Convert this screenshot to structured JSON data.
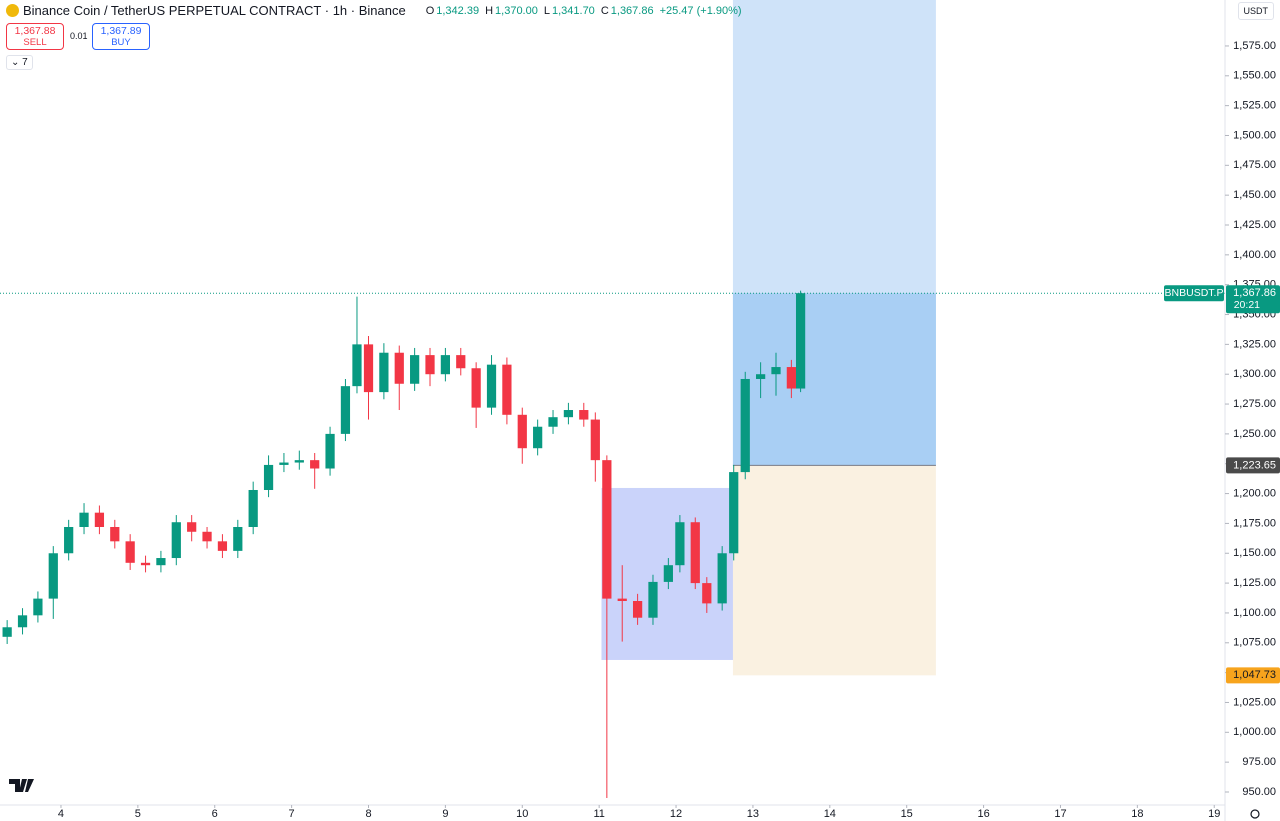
{
  "header": {
    "symbol": "Binance Coin / TetherUS PERPETUAL CONTRACT · 1h · Binance",
    "ohlc": [
      {
        "key": "O",
        "value": "1,342.39"
      },
      {
        "key": "H",
        "value": "1,370.00"
      },
      {
        "key": "L",
        "value": "1,341.70"
      },
      {
        "key": "C",
        "value": "1,367.86"
      }
    ],
    "change": "+25.47 (+1.90%)",
    "sell_price": "1,367.88",
    "sell": "SELL",
    "quantity": "0.01",
    "buy_price": "1,367.89",
    "buy": "BUY",
    "indicators": "7",
    "currency": "USDT"
  },
  "chart_data": {
    "type": "candlestick",
    "x": [
      3.3,
      3.5,
      3.7,
      3.9,
      4.1,
      4.3,
      4.5,
      4.7,
      4.9,
      5.1,
      5.3,
      5.5,
      5.7,
      5.9,
      6.1,
      6.3,
      6.5,
      6.7,
      6.9,
      7.1,
      7.3,
      7.5,
      7.7,
      7.85,
      8.0,
      8.2,
      8.4,
      8.6,
      8.8,
      9.0,
      9.2,
      9.4,
      9.6,
      9.8,
      10.0,
      10.2,
      10.4,
      10.6,
      10.8,
      10.95,
      11.1,
      11.3,
      11.5,
      11.7,
      11.9,
      12.05,
      12.25,
      12.4,
      12.6,
      12.75,
      12.9,
      13.1,
      13.3,
      13.5,
      13.62
    ],
    "open": [
      1080,
      1088,
      1098,
      1112,
      1150,
      1172,
      1184,
      1172,
      1160,
      1142,
      1140,
      1146,
      1176,
      1168,
      1160,
      1152,
      1172,
      1203,
      1224,
      1226,
      1228,
      1221,
      1250,
      1290,
      1325,
      1285,
      1318,
      1292,
      1316,
      1300,
      1316,
      1305,
      1272,
      1308,
      1266,
      1238,
      1256,
      1264,
      1270,
      1262,
      1228,
      1112,
      1110,
      1096,
      1126,
      1140,
      1176,
      1125,
      1108,
      1150,
      1218,
      1296,
      1300,
      1306,
      1288
    ],
    "high": [
      1094,
      1104,
      1118,
      1156,
      1178,
      1192,
      1190,
      1178,
      1166,
      1148,
      1152,
      1182,
      1182,
      1172,
      1166,
      1178,
      1210,
      1232,
      1234,
      1236,
      1234,
      1256,
      1296,
      1365,
      1332,
      1326,
      1324,
      1322,
      1322,
      1322,
      1322,
      1310,
      1316,
      1314,
      1272,
      1262,
      1270,
      1276,
      1276,
      1268,
      1232,
      1140,
      1116,
      1132,
      1146,
      1182,
      1180,
      1130,
      1156,
      1224,
      1302,
      1310,
      1318,
      1312,
      1370
    ],
    "low": [
      1074,
      1082,
      1092,
      1095,
      1144,
      1166,
      1166,
      1154,
      1136,
      1134,
      1134,
      1140,
      1160,
      1154,
      1146,
      1146,
      1166,
      1197,
      1218,
      1220,
      1204,
      1215,
      1244,
      1284,
      1262,
      1279,
      1270,
      1286,
      1290,
      1294,
      1299,
      1255,
      1266,
      1258,
      1225,
      1232,
      1250,
      1258,
      1256,
      1210,
      945,
      1076,
      1090,
      1090,
      1120,
      1134,
      1120,
      1100,
      1102,
      1144,
      1212,
      1280,
      1282,
      1280,
      1285
    ],
    "close": [
      1088,
      1098,
      1112,
      1150,
      1172,
      1184,
      1172,
      1160,
      1142,
      1140,
      1146,
      1176,
      1168,
      1160,
      1152,
      1172,
      1203,
      1224,
      1226,
      1228,
      1221,
      1250,
      1290,
      1325,
      1285,
      1318,
      1292,
      1316,
      1300,
      1316,
      1305,
      1272,
      1308,
      1266,
      1238,
      1256,
      1264,
      1270,
      1262,
      1228,
      1112,
      1110,
      1096,
      1126,
      1140,
      1176,
      1125,
      1108,
      1150,
      1218,
      1296,
      1300,
      1306,
      1288,
      1367.86
    ],
    "up_color": "#089981",
    "down_color": "#f23645",
    "xlim": [
      3.207,
      19.14
    ],
    "xticks": [
      4,
      5,
      6,
      7,
      8,
      9,
      10,
      11,
      12,
      13,
      14,
      15,
      16,
      17,
      18,
      19
    ],
    "ylim": [
      939.1,
      1613.5
    ],
    "yticks": [
      {
        "value": 950,
        "label": "950.00"
      },
      {
        "value": 975,
        "label": "975.00"
      },
      {
        "value": 1000,
        "label": "1,000.00"
      },
      {
        "value": 1025,
        "label": "1,025.00"
      },
      {
        "value": 1050,
        "label": "1,050.00"
      },
      {
        "value": 1075,
        "label": "1,075.00"
      },
      {
        "value": 1100,
        "label": "1,100.00"
      },
      {
        "value": 1125,
        "label": "1,125.00"
      },
      {
        "value": 1150,
        "label": "1,150.00"
      },
      {
        "value": 1175,
        "label": "1,175.00"
      },
      {
        "value": 1200,
        "label": "1,200.00"
      },
      {
        "value": 1225,
        "label": "1,225.00"
      },
      {
        "value": 1250,
        "label": "1,250.00"
      },
      {
        "value": 1275,
        "label": "1,275.00"
      },
      {
        "value": 1300,
        "label": "1,300.00"
      },
      {
        "value": 1325,
        "label": "1,325.00"
      },
      {
        "value": 1350,
        "label": "1,350.00"
      },
      {
        "value": 1375,
        "label": "1,375.00"
      },
      {
        "value": 1400,
        "label": "1,400.00"
      },
      {
        "value": 1425,
        "label": "1,425.00"
      },
      {
        "value": 1450,
        "label": "1,450.00"
      },
      {
        "value": 1475,
        "label": "1,475.00"
      },
      {
        "value": 1500,
        "label": "1,500.00"
      },
      {
        "value": 1525,
        "label": "1,525.00"
      },
      {
        "value": 1550,
        "label": "1,550.00"
      },
      {
        "value": 1575,
        "label": "1,575.00"
      }
    ],
    "grid": false,
    "rectangle": {
      "x": [
        11.03,
        12.91
      ],
      "y": [
        1060.6,
        1204.7
      ],
      "color": "#a7b5f7"
    },
    "position": {
      "x": [
        12.74,
        15.38
      ],
      "target_color": "#cfe3f9",
      "active_color": "#a9cff4",
      "stop_color": "#faf1e1"
    },
    "last_price": {
      "symbol": "BNBUSDT.P",
      "price": {
        "value": 1367.86,
        "label": "1,367.86"
      },
      "countdown": "20:21",
      "color": "#089981"
    },
    "entry": {
      "value": 1223.65,
      "label": "1,223.65",
      "color": "#4a4a4a"
    },
    "stop": {
      "value": 1047.73,
      "label": "1,047.73",
      "color": "#f7a41d"
    }
  }
}
